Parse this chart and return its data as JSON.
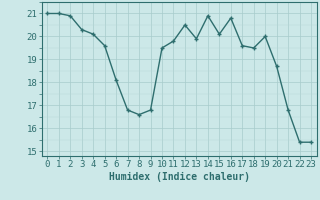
{
  "x": [
    0,
    1,
    2,
    3,
    4,
    5,
    6,
    7,
    8,
    9,
    10,
    11,
    12,
    13,
    14,
    15,
    16,
    17,
    18,
    19,
    20,
    21,
    22,
    23
  ],
  "y": [
    21.0,
    21.0,
    20.9,
    20.3,
    20.1,
    19.6,
    18.1,
    16.8,
    16.6,
    16.8,
    19.5,
    19.8,
    20.5,
    19.9,
    20.9,
    20.1,
    20.8,
    19.6,
    19.5,
    20.0,
    18.7,
    16.8,
    15.4,
    15.4
  ],
  "line_color": "#2e6e6e",
  "marker_color": "#2e6e6e",
  "bg_color": "#cce8e8",
  "grid_color_major": "#a8cccc",
  "xlabel": "Humidex (Indice chaleur)",
  "ylim": [
    14.8,
    21.5
  ],
  "xlim": [
    -0.5,
    23.5
  ],
  "yticks": [
    15,
    16,
    17,
    18,
    19,
    20,
    21
  ],
  "xticks": [
    0,
    1,
    2,
    3,
    4,
    5,
    6,
    7,
    8,
    9,
    10,
    11,
    12,
    13,
    14,
    15,
    16,
    17,
    18,
    19,
    20,
    21,
    22,
    23
  ],
  "xlabel_fontsize": 7,
  "tick_fontsize": 6.5,
  "line_width": 1.0,
  "marker_size": 2.5
}
